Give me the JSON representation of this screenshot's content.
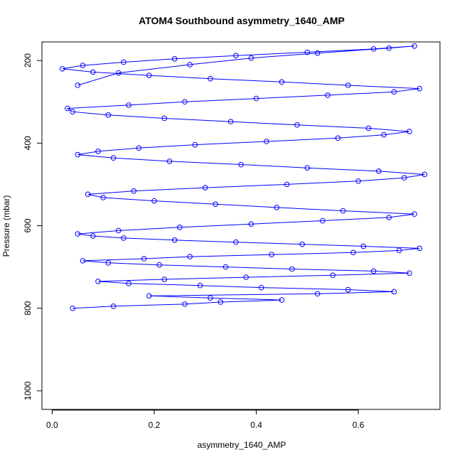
{
  "chart_data": {
    "type": "line",
    "title": "ATOM4 Southbound asymmetry_1640_AMP",
    "xlabel": "asymmetry_1640_AMP",
    "ylabel": "Pressure (mbar)",
    "xlim": [
      -0.02,
      0.76
    ],
    "ylim": [
      1045,
      155
    ],
    "y_reversed": true,
    "x_ticks": [
      0.0,
      0.2,
      0.4,
      0.6
    ],
    "x_tick_labels": [
      "0.0",
      "0.2",
      "0.4",
      "0.6"
    ],
    "y_ticks": [
      200,
      400,
      600,
      800,
      1000
    ],
    "y_tick_labels": [
      "200",
      "400",
      "600",
      "800",
      "1000"
    ],
    "grid": false,
    "legend": "none",
    "series_color": "#0000ff",
    "markers": "open-circle",
    "series": [
      {
        "x": [
          0.04,
          0.12,
          0.26,
          0.33,
          0.45,
          0.31,
          0.19,
          0.52,
          0.67,
          0.58,
          0.41,
          0.29,
          0.15,
          0.09,
          0.22,
          0.38,
          0.55,
          0.7,
          0.63,
          0.47,
          0.34,
          0.21,
          0.11,
          0.06,
          0.18,
          0.27,
          0.43,
          0.59,
          0.68,
          0.72,
          0.61,
          0.49,
          0.36,
          0.24,
          0.14,
          0.08,
          0.05,
          0.13,
          0.25,
          0.39,
          0.53,
          0.66,
          0.71,
          0.57,
          0.44,
          0.32,
          0.2,
          0.1,
          0.07,
          0.16,
          0.3,
          0.46,
          0.6,
          0.69,
          0.73,
          0.64,
          0.5,
          0.37,
          0.23,
          0.12,
          0.05,
          0.09,
          0.17,
          0.28,
          0.42,
          0.56,
          0.65,
          0.7,
          0.62,
          0.48,
          0.35,
          0.22,
          0.11,
          0.04,
          0.03,
          0.15,
          0.26,
          0.4,
          0.54,
          0.67,
          0.72,
          0.58,
          0.45,
          0.31,
          0.19,
          0.08,
          0.02,
          0.06,
          0.14,
          0.24,
          0.36,
          0.5,
          0.63,
          0.71,
          0.66,
          0.52,
          0.39,
          0.27,
          0.13,
          0.05
        ],
        "y": [
          800,
          795,
          790,
          785,
          780,
          775,
          770,
          765,
          760,
          755,
          750,
          745,
          740,
          735,
          730,
          725,
          720,
          715,
          710,
          705,
          700,
          695,
          690,
          685,
          680,
          675,
          670,
          665,
          660,
          655,
          650,
          645,
          640,
          635,
          630,
          625,
          620,
          612,
          604,
          596,
          588,
          580,
          572,
          564,
          556,
          548,
          540,
          532,
          524,
          516,
          508,
          500,
          492,
          484,
          476,
          468,
          460,
          452,
          444,
          436,
          428,
          420,
          412,
          404,
          396,
          388,
          380,
          372,
          364,
          356,
          348,
          340,
          332,
          324,
          316,
          308,
          300,
          292,
          284,
          276,
          268,
          260,
          252,
          244,
          236,
          228,
          220,
          212,
          204,
          196,
          188,
          180,
          172,
          165,
          170,
          182,
          194,
          210,
          230,
          260
        ]
      }
    ]
  }
}
